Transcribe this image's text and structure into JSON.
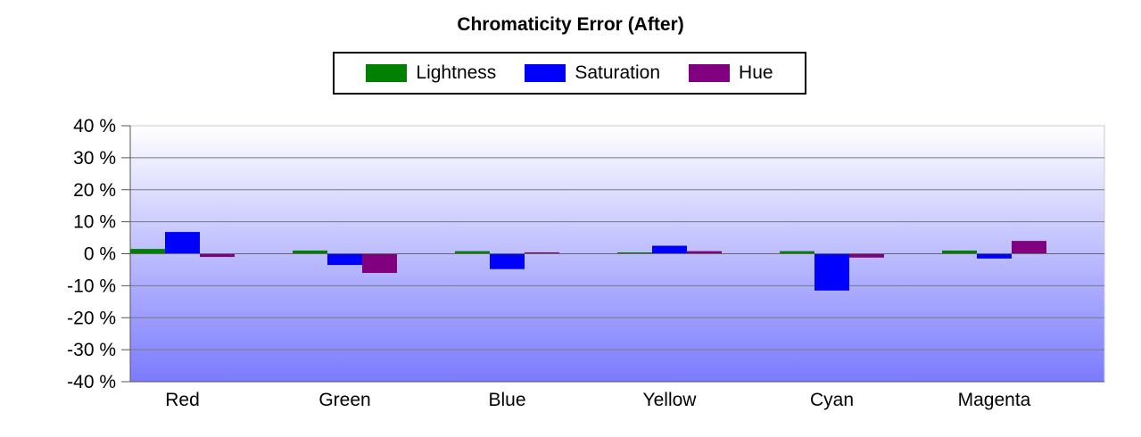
{
  "chart_data": {
    "type": "bar",
    "title": "Chromaticity Error (After)",
    "categories": [
      "Red",
      "Green",
      "Blue",
      "Yellow",
      "Cyan",
      "Magenta"
    ],
    "series": [
      {
        "name": "Lightness",
        "color": "#008000",
        "values": [
          1.5,
          1.0,
          0.8,
          0.3,
          0.8,
          1.0
        ]
      },
      {
        "name": "Saturation",
        "color": "#0000ff",
        "values": [
          6.8,
          -3.5,
          -4.8,
          2.5,
          -11.5,
          -1.5
        ]
      },
      {
        "name": "Hue",
        "color": "#800080",
        "values": [
          -1.0,
          -6.0,
          0.3,
          0.8,
          -1.2,
          4.0
        ]
      }
    ],
    "y_ticks": [
      "40 %",
      "30 %",
      "20 %",
      "10 %",
      "0 %",
      "-10 %",
      "-20 %",
      "-30 %",
      "-40 %"
    ],
    "ylim": [
      -40,
      40
    ],
    "grid": true,
    "legend_position": "top-center",
    "background_gradient": [
      "#ffffff",
      "#7b7bff"
    ]
  }
}
